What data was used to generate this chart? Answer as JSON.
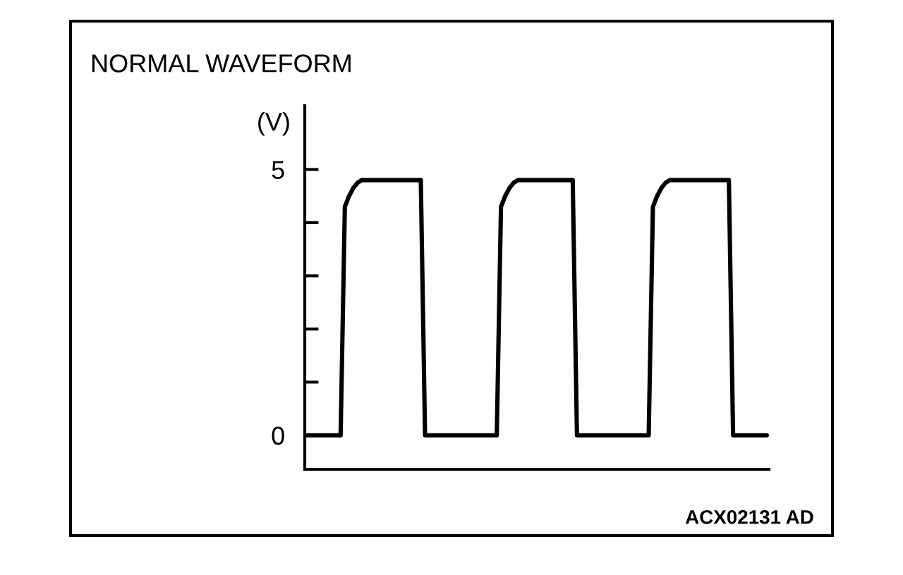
{
  "chart_data": {
    "type": "line",
    "title": "NORMAL WAVEFORM",
    "ylabel": "(V)",
    "categories": [
      null,
      null,
      null,
      null,
      null,
      null,
      null,
      null,
      null,
      null,
      null,
      null,
      null,
      null,
      null,
      null,
      null,
      null,
      null,
      null,
      null,
      null,
      null,
      null,
      null,
      null,
      null,
      null,
      null,
      null,
      null,
      null,
      null,
      null,
      null,
      null,
      null,
      null,
      null,
      null,
      null,
      null,
      null,
      null,
      null,
      null,
      null,
      null,
      null,
      null,
      null,
      null,
      null,
      null,
      null,
      null,
      null,
      null,
      null,
      null,
      null,
      null,
      null,
      null,
      null,
      null,
      null,
      null,
      null,
      null,
      null,
      null,
      null,
      null,
      null,
      null,
      null,
      null,
      null,
      null,
      null,
      null,
      null,
      null,
      null,
      null,
      null,
      null,
      null,
      null,
      null,
      null,
      null,
      null,
      null,
      null,
      null,
      null,
      null,
      null,
      null,
      null,
      null,
      null,
      null,
      null,
      null,
      null,
      null,
      null
    ],
    "series": [
      {
        "color": "#000000",
        "values": [
          0,
          0,
          0,
          0,
          0,
          0,
          0,
          0,
          0,
          4.3,
          4.5,
          4.65,
          4.75,
          4.8,
          4.8,
          4.8,
          4.8,
          4.8,
          4.8,
          4.8,
          4.8,
          4.8,
          4.8,
          4.8,
          4.8,
          4.8,
          4.8,
          4.8,
          0,
          0,
          0,
          0,
          0,
          0,
          0,
          0,
          0,
          0,
          0,
          0,
          0,
          0,
          0,
          0,
          0,
          0,
          4.3,
          4.5,
          4.65,
          4.75,
          4.8,
          4.8,
          4.8,
          4.8,
          4.8,
          4.8,
          4.8,
          4.8,
          4.8,
          4.8,
          4.8,
          4.8,
          4.8,
          4.8,
          0,
          0,
          0,
          0,
          0,
          0,
          0,
          0,
          0,
          0,
          0,
          0,
          0,
          0,
          0,
          0,
          0,
          0,
          4.3,
          4.5,
          4.65,
          4.75,
          4.8,
          4.8,
          4.8,
          4.8,
          4.8,
          4.8,
          4.8,
          4.8,
          4.8,
          4.8,
          4.8,
          4.8,
          4.8,
          4.8,
          4.8,
          0,
          0,
          0,
          0,
          0,
          0,
          0,
          0,
          0
        ]
      }
    ],
    "ylim": [
      -0.64,
      6.2
    ],
    "yticks": [
      0,
      {
        "value": 1,
        "label": null
      },
      {
        "value": 2,
        "label": null
      },
      {
        "value": 3,
        "label": null
      },
      {
        "value": 4,
        "label": null
      },
      5
    ],
    "tick_labels": "y",
    "annotations": [
      "ACX02131 AD"
    ]
  }
}
